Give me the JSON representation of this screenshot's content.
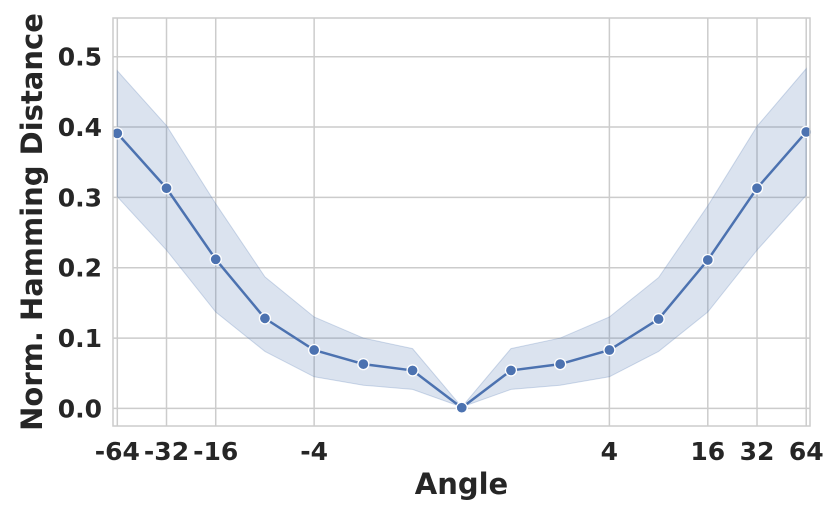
{
  "chart_data": {
    "type": "line",
    "xlabel": "Angle",
    "ylabel": "Norm. Hamming Distance",
    "xlim": [
      -68,
      67.5
    ],
    "ylim": [
      -0.025,
      0.555
    ],
    "grid": true,
    "x_ticks": [
      {
        "value": -64,
        "label": "-64"
      },
      {
        "value": -32,
        "label": "-32"
      },
      {
        "value": -16,
        "label": "-16"
      },
      {
        "value": -4,
        "label": "-4"
      },
      {
        "value": 4,
        "label": "4"
      },
      {
        "value": 16,
        "label": "16"
      },
      {
        "value": 32,
        "label": "32"
      },
      {
        "value": 64,
        "label": "64"
      }
    ],
    "y_ticks": [
      {
        "value": 0.0,
        "label": "0.0"
      },
      {
        "value": 0.1,
        "label": "0.1"
      },
      {
        "value": 0.2,
        "label": "0.2"
      },
      {
        "value": 0.3,
        "label": "0.3"
      },
      {
        "value": 0.4,
        "label": "0.4"
      },
      {
        "value": 0.5,
        "label": "0.5"
      }
    ],
    "series": [
      {
        "color": "#4c72b0",
        "band_color": "#4c72b0",
        "x": [
          -64,
          -32,
          -16,
          -8,
          -4,
          -2,
          -1,
          0,
          1,
          2,
          4,
          8,
          16,
          32,
          64
        ],
        "y": [
          0.391,
          0.313,
          0.212,
          0.128,
          0.083,
          0.063,
          0.054,
          0.001,
          0.054,
          0.063,
          0.083,
          0.127,
          0.211,
          0.313,
          0.393
        ],
        "lower": [
          0.301,
          0.225,
          0.137,
          0.081,
          0.045,
          0.033,
          0.027,
          0.002,
          0.027,
          0.033,
          0.045,
          0.081,
          0.137,
          0.225,
          0.303
        ],
        "upper": [
          0.48,
          0.402,
          0.291,
          0.187,
          0.13,
          0.1,
          0.085,
          0.002,
          0.085,
          0.1,
          0.13,
          0.186,
          0.288,
          0.401,
          0.483
        ]
      }
    ]
  }
}
